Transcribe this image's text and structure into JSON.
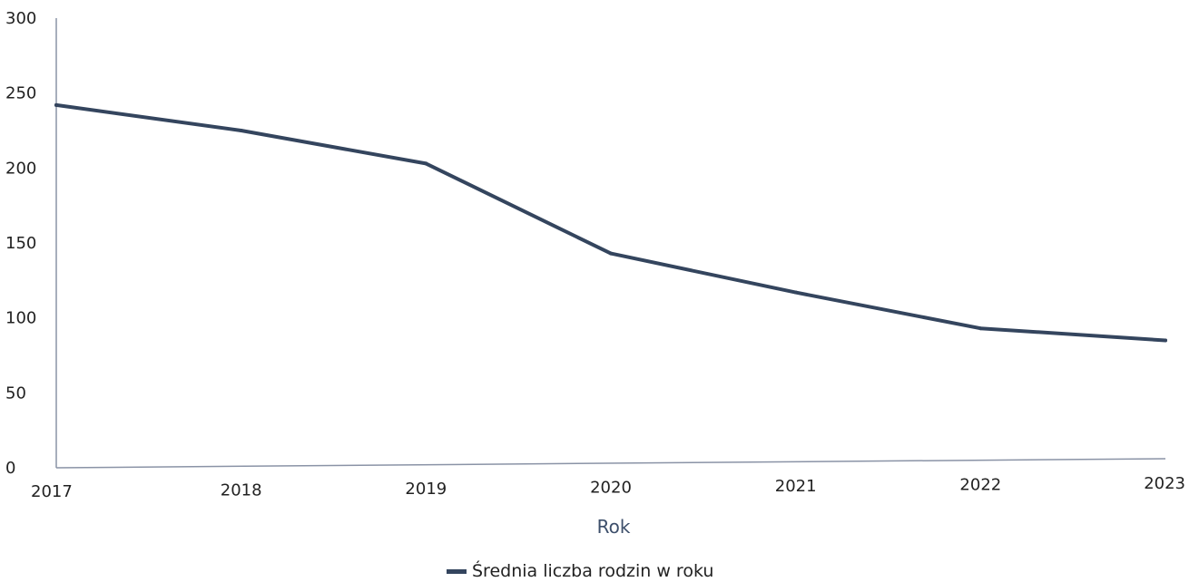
{
  "chart_data": {
    "type": "line",
    "x": [
      "2017",
      "2018",
      "2019",
      "2020",
      "2021",
      "2022",
      "2023"
    ],
    "series": [
      {
        "name": "Średnia liczba rodzin w roku",
        "values": [
          242,
          225,
          203,
          143,
          117,
          93,
          85
        ]
      }
    ],
    "xlabel": "Rok",
    "ylabel": "",
    "ylim": [
      0,
      300
    ],
    "yticks": [
      0,
      50,
      100,
      150,
      200,
      250,
      300
    ],
    "grid": false,
    "legend_position": "bottom-center",
    "colors": {
      "line": "#34455e",
      "axis": "#8a93a6",
      "xlabel": "#3d4f6b"
    }
  }
}
